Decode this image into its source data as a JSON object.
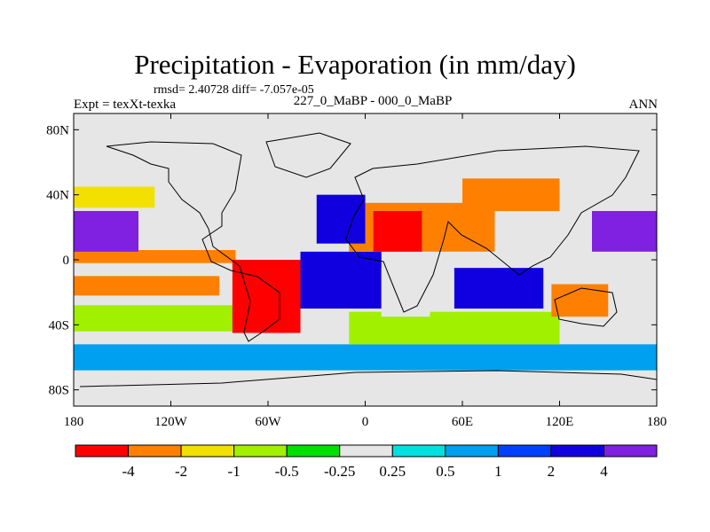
{
  "header": {
    "title": "Precipitation - Evaporation (in mm/day)",
    "stats": "rmsd= 2.40728 diff= -7.057e-05",
    "experiment": "Expt = texXt-texka",
    "comparison": "227_0_MaBP - 000_0_MaBP",
    "season": "ANN"
  },
  "chart_data": {
    "type": "heatmap",
    "title": "Precipitation - Evaporation (in mm/day)",
    "subtitle": "227_0_MaBP - 000_0_MaBP",
    "units": "mm/day",
    "x_axis": {
      "range": [
        -180,
        180
      ],
      "ticks": [
        {
          "value": -180,
          "label": "180"
        },
        {
          "value": -120,
          "label": "120W"
        },
        {
          "value": -60,
          "label": "60W"
        },
        {
          "value": 0,
          "label": "0"
        },
        {
          "value": 60,
          "label": "60E"
        },
        {
          "value": 120,
          "label": "120E"
        },
        {
          "value": 180,
          "label": "180"
        }
      ]
    },
    "y_axis": {
      "range": [
        -90,
        90
      ],
      "ticks": [
        {
          "value": 80,
          "label": "80N"
        },
        {
          "value": 40,
          "label": "40N"
        },
        {
          "value": 0,
          "label": "0"
        },
        {
          "value": -40,
          "label": "40S"
        },
        {
          "value": -80,
          "label": "80S"
        }
      ]
    },
    "colorbar": {
      "boundaries": [
        "-4",
        "-2",
        "-1",
        "-0.5",
        "-0.25",
        "0.25",
        "0.5",
        "1",
        "2",
        "4"
      ],
      "colors": [
        "#ff0000",
        "#ff8000",
        "#f2e000",
        "#a0f000",
        "#00e000",
        "#e6e6e6",
        "#00e0e0",
        "#00a0f0",
        "#0040ff",
        "#1000e0",
        "#8020e0"
      ]
    },
    "regions": [
      {
        "lon": [
          -180,
          180
        ],
        "lat": [
          -90,
          -68
        ],
        "level": 5
      },
      {
        "lon": [
          -180,
          180
        ],
        "lat": [
          -68,
          -52
        ],
        "level": 7
      },
      {
        "lon": [
          -10,
          120
        ],
        "lat": [
          -52,
          -32
        ],
        "level": 3
      },
      {
        "lon": [
          -180,
          -80
        ],
        "lat": [
          -44,
          -28
        ],
        "level": 3
      },
      {
        "lon": [
          -180,
          -90
        ],
        "lat": [
          -22,
          -10
        ],
        "level": 1
      },
      {
        "lon": [
          -180,
          -80
        ],
        "lat": [
          -2,
          6
        ],
        "level": 1
      },
      {
        "lon": [
          -82,
          -40
        ],
        "lat": [
          -45,
          0
        ],
        "level": 0
      },
      {
        "lon": [
          -40,
          10
        ],
        "lat": [
          -30,
          5
        ],
        "level": 9
      },
      {
        "lon": [
          10,
          40
        ],
        "lat": [
          -35,
          -5
        ],
        "level": 5
      },
      {
        "lon": [
          55,
          110
        ],
        "lat": [
          -30,
          -5
        ],
        "level": 9
      },
      {
        "lon": [
          115,
          150
        ],
        "lat": [
          -35,
          -15
        ],
        "level": 1
      },
      {
        "lon": [
          -10,
          80
        ],
        "lat": [
          5,
          35
        ],
        "level": 1
      },
      {
        "lon": [
          5,
          35
        ],
        "lat": [
          5,
          30
        ],
        "level": 0
      },
      {
        "lon": [
          -30,
          0
        ],
        "lat": [
          10,
          40
        ],
        "level": 9
      },
      {
        "lon": [
          60,
          120
        ],
        "lat": [
          30,
          50
        ],
        "level": 1
      },
      {
        "lon": [
          -180,
          -140
        ],
        "lat": [
          5,
          30
        ],
        "level": 10
      },
      {
        "lon": [
          140,
          180
        ],
        "lat": [
          5,
          30
        ],
        "level": 10
      },
      {
        "lon": [
          -180,
          -130
        ],
        "lat": [
          32,
          45
        ],
        "level": 2
      },
      {
        "lon": [
          -180,
          180
        ],
        "lat": [
          62,
          90
        ],
        "level": 5
      }
    ]
  }
}
